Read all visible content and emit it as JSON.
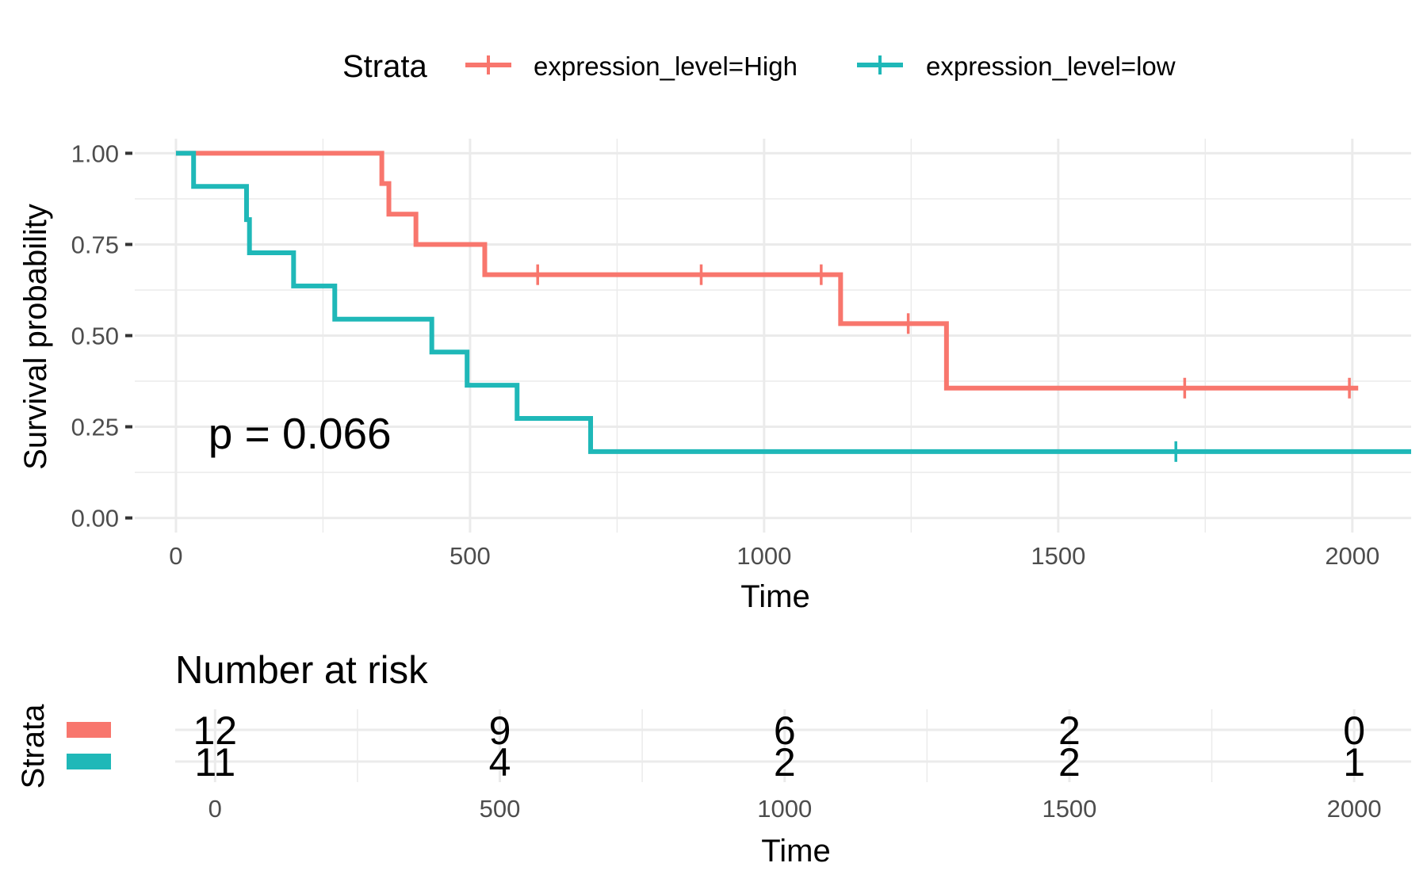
{
  "colors": {
    "high": "#F8766D",
    "low": "#1FB8B8",
    "grid": "#EBEBEB",
    "text": "#000000",
    "tick_text": "#4D4D4D"
  },
  "legend": {
    "title": "Strata",
    "items": [
      {
        "key": "high",
        "label": "expression_level=High"
      },
      {
        "key": "low",
        "label": "expression_level=low"
      }
    ]
  },
  "chart_data": [
    {
      "type": "line",
      "subtype": "kaplan-meier-step",
      "xlabel": "Time",
      "ylabel": "Survival probability",
      "xlim": [
        -70,
        2100
      ],
      "ylim": [
        -0.04,
        1.04
      ],
      "x_ticks": [
        0,
        500,
        1000,
        1500,
        2000
      ],
      "x_minor_ticks": [
        250,
        750,
        1250,
        1750
      ],
      "y_ticks": [
        0.0,
        0.25,
        0.5,
        0.75,
        1.0
      ],
      "y_tick_labels": [
        "0.00",
        "0.25",
        "0.50",
        "0.75",
        "1.00"
      ],
      "y_minor_ticks": [
        0.125,
        0.375,
        0.625,
        0.875
      ],
      "grid": true,
      "annotation": "p = 0.066",
      "annotation_pos": {
        "x": 55,
        "y": 0.19
      },
      "series": [
        {
          "key": "high",
          "name": "expression_level=High",
          "steps": [
            [
              0,
              1.0
            ],
            [
              350,
              0.917
            ],
            [
              362,
              0.833
            ],
            [
              408,
              0.75
            ],
            [
              525,
              0.667
            ],
            [
              1130,
              0.533
            ],
            [
              1310,
              0.356
            ],
            [
              2010,
              0.356
            ]
          ],
          "censor_times": [
            615,
            893,
            1097,
            1245,
            1715,
            1995
          ]
        },
        {
          "key": "low",
          "name": "expression_level=low",
          "steps": [
            [
              0,
              1.0
            ],
            [
              30,
              0.909
            ],
            [
              120,
              0.818
            ],
            [
              125,
              0.727
            ],
            [
              200,
              0.636
            ],
            [
              270,
              0.545
            ],
            [
              435,
              0.455
            ],
            [
              495,
              0.364
            ],
            [
              580,
              0.273
            ],
            [
              705,
              0.182
            ],
            [
              2100,
              0.182
            ]
          ],
          "censor_times": [
            1700
          ]
        }
      ]
    },
    {
      "type": "table",
      "title": "Number at risk",
      "xlabel": "Time",
      "ylabel": "Strata",
      "xlim": [
        -70,
        2100
      ],
      "x_ticks": [
        0,
        500,
        1000,
        1500,
        2000
      ],
      "x_minor_ticks": [
        250,
        750,
        1250,
        1750
      ],
      "rows": [
        {
          "key": "high",
          "values": [
            "12",
            "9",
            "6",
            "2",
            "0"
          ]
        },
        {
          "key": "low",
          "values": [
            "11",
            "4",
            "2",
            "2",
            "1"
          ]
        }
      ]
    }
  ]
}
